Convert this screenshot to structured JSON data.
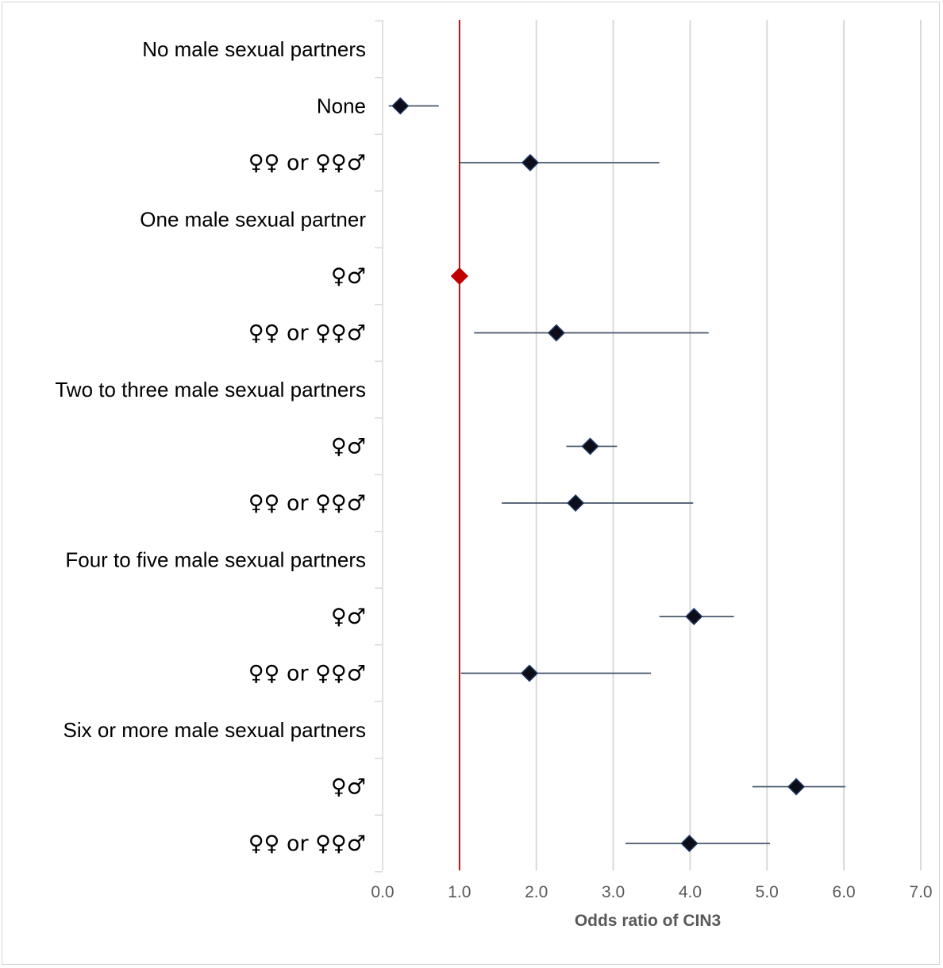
{
  "chart_data": {
    "type": "forest",
    "xlabel": "Odds ratio of  CIN3",
    "xlim": [
      0,
      7
    ],
    "x_ticks": [
      "0.0",
      "1.0",
      "2.0",
      "3.0",
      "4.0",
      "5.0",
      "6.0",
      "7.0"
    ],
    "grid": "vertical",
    "reference_line": {
      "x": 1.0,
      "color": "#c00000"
    },
    "marker_color": "#0d0d1a",
    "reference_marker_color": "#c00000",
    "rows": [
      {
        "label": "No male sexual partners",
        "type": "header"
      },
      {
        "label": "None",
        "type": "estimate",
        "or": 0.23,
        "ci": [
          0.08,
          0.73
        ]
      },
      {
        "label": "♀♀ or ♀♀♂",
        "type": "estimate",
        "or": 1.92,
        "ci": [
          1.0,
          3.6
        ]
      },
      {
        "label": "One male sexual partner",
        "type": "header"
      },
      {
        "label": "♀♂",
        "type": "reference",
        "or": 1.0
      },
      {
        "label": "♀♀ or ♀♀♂",
        "type": "estimate",
        "or": 2.26,
        "ci": [
          1.19,
          4.24
        ]
      },
      {
        "label": "Two to three male sexual partners",
        "type": "header"
      },
      {
        "label": "♀♂",
        "type": "estimate",
        "or": 2.7,
        "ci": [
          2.39,
          3.05
        ]
      },
      {
        "label": "♀♀ or ♀♀♂",
        "type": "estimate",
        "or": 2.51,
        "ci": [
          1.55,
          4.04
        ]
      },
      {
        "label": "Four to five male sexual partners",
        "type": "header"
      },
      {
        "label": "♀♂",
        "type": "estimate",
        "or": 4.05,
        "ci": [
          3.6,
          4.57
        ]
      },
      {
        "label": "♀♀ or ♀♀♂",
        "type": "estimate",
        "or": 1.91,
        "ci": [
          1.02,
          3.49
        ]
      },
      {
        "label": "Six or more male sexual partners",
        "type": "header"
      },
      {
        "label": "♀♂",
        "type": "estimate",
        "or": 5.38,
        "ci": [
          4.81,
          6.02
        ]
      },
      {
        "label": "♀♀ or ♀♀♂",
        "type": "estimate",
        "or": 3.99,
        "ci": [
          3.16,
          5.04
        ]
      }
    ]
  }
}
